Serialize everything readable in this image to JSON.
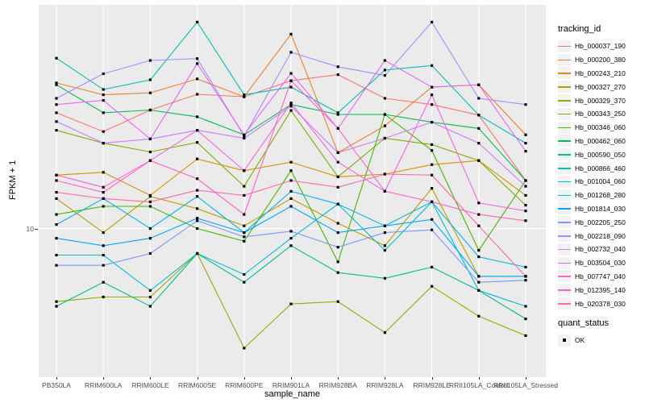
{
  "figure": {
    "panel_bg": "#EBEBEB",
    "grid_color": "#FFFFFF",
    "tick_color": "#333333",
    "axis_text_color": "#4D4D4D",
    "xlabel": "sample_name",
    "ylabel": "FPKM + 1",
    "ytick_label": "10",
    "legend": {
      "tracking_title": "tracking_id",
      "quant_title": "quant_status",
      "quant_ok_label": "OK",
      "point_marker": "black-square"
    }
  },
  "chart_data": {
    "type": "line",
    "title": "",
    "xlabel": "sample_name",
    "ylabel": "FPKM + 1",
    "yscale": "log10",
    "ylim": [
      3.3,
      53
    ],
    "yticks": [
      10
    ],
    "grid": "major-white-on-grey",
    "legend_position": "right",
    "point_marker": "black-square",
    "categories": [
      "PB350LA",
      "RRIM600LA",
      "RRIM600LE",
      "RRIM600SE",
      "RRIM600PE",
      "RRIM901LA",
      "RRIM928BA",
      "RRIM928LA",
      "RRIM928LE",
      "RRII105LA_Control",
      "RRII105LA_Stressed"
    ],
    "series": [
      {
        "name": "Hb_000037_190",
        "color": "#F8766D",
        "values": [
          23.7,
          20.6,
          24.2,
          27.2,
          26.7,
          30.1,
          31.5,
          26.4,
          25.2,
          23.3,
          14.3
        ]
      },
      {
        "name": "Hb_000200_380",
        "color": "#EA8331",
        "values": [
          29.6,
          27.1,
          27.5,
          30.5,
          26.7,
          42.6,
          17.6,
          21.5,
          28.7,
          29.2,
          20.1
        ]
      },
      {
        "name": "Hb_000243_210",
        "color": "#D89000",
        "values": [
          14.9,
          15.2,
          12.8,
          16.8,
          15.4,
          16.4,
          14.7,
          15.0,
          16.1,
          16.6,
          12.8
        ]
      },
      {
        "name": "Hb_000327_270",
        "color": "#C09B00",
        "values": [
          12.5,
          9.7,
          12.7,
          11.6,
          10.2,
          12.5,
          10.4,
          8.8,
          13.5,
          7.0,
          7.0
        ]
      },
      {
        "name": "Hb_000329_370",
        "color": "#A3A500",
        "values": [
          5.8,
          6.0,
          6.0,
          8.3,
          4.1,
          5.7,
          5.8,
          4.6,
          6.5,
          5.2,
          4.5
        ]
      },
      {
        "name": "Hb_000343_250",
        "color": "#7CAE00",
        "values": [
          20.8,
          18.9,
          17.7,
          19.0,
          13.7,
          24.1,
          14.7,
          19.6,
          18.7,
          16.6,
          11.9
        ]
      },
      {
        "name": "Hb_000346_060",
        "color": "#49B500",
        "values": [
          11.1,
          11.8,
          11.8,
          10.0,
          9.1,
          15.4,
          7.8,
          23.4,
          17.9,
          8.5,
          14.3
        ]
      },
      {
        "name": "Hb_000462_060",
        "color": "#00BC51",
        "values": [
          29.2,
          23.7,
          24.2,
          23.0,
          20.1,
          25.2,
          23.4,
          23.4,
          22.1,
          21.1,
          14.3
        ]
      },
      {
        "name": "Hb_000590_050",
        "color": "#00C087",
        "values": [
          5.6,
          6.7,
          5.6,
          8.3,
          6.7,
          8.8,
          7.2,
          6.9,
          7.5,
          6.3,
          5.1
        ]
      },
      {
        "name": "Hb_000866_460",
        "color": "#00C0B2",
        "values": [
          35.6,
          28.2,
          30.3,
          46.6,
          27.1,
          28.7,
          23.7,
          32.6,
          33.7,
          23.3,
          18.9
        ]
      },
      {
        "name": "Hb_001004_060",
        "color": "#00BDD4",
        "values": [
          8.2,
          8.2,
          6.3,
          8.3,
          7.1,
          9.3,
          12.0,
          8.5,
          12.2,
          6.3,
          5.6
        ]
      },
      {
        "name": "Hb_001268_280",
        "color": "#00B5EC",
        "values": [
          10.3,
          12.5,
          10.0,
          12.7,
          9.7,
          13.2,
          12.0,
          10.2,
          12.2,
          8.1,
          7.5
        ]
      },
      {
        "name": "Hb_001814_030",
        "color": "#00A7FF",
        "values": [
          9.3,
          8.8,
          9.3,
          10.8,
          9.7,
          11.8,
          9.7,
          10.2,
          10.7,
          7.0,
          7.0
        ]
      },
      {
        "name": "Hb_002205_250",
        "color": "#7997FF",
        "values": [
          7.6,
          7.6,
          8.3,
          10.6,
          9.4,
          9.8,
          8.7,
          9.7,
          9.9,
          6.7,
          6.8
        ]
      },
      {
        "name": "Hb_002218_090",
        "color": "#AC88FF",
        "values": [
          26.4,
          31.7,
          35.0,
          35.5,
          19.9,
          37.2,
          33.4,
          31.3,
          46.6,
          26.4,
          25.2
        ]
      },
      {
        "name": "Hb_002732_040",
        "color": "#CF78FF",
        "values": [
          22.2,
          18.9,
          19.5,
          20.8,
          19.6,
          24.9,
          17.6,
          19.6,
          22.1,
          18.9,
          13.7
        ]
      },
      {
        "name": "Hb_003504_030",
        "color": "#E866F4",
        "values": [
          25.2,
          26.0,
          19.5,
          34.2,
          20.1,
          31.8,
          21.1,
          35.0,
          28.7,
          29.2,
          17.8
        ]
      },
      {
        "name": "Hb_007747_040",
        "color": "#F863DF",
        "values": [
          14.9,
          13.6,
          16.6,
          20.8,
          15.4,
          25.5,
          16.4,
          13.2,
          27.1,
          12.1,
          11.4
        ]
      },
      {
        "name": "Hb_012395_140",
        "color": "#FF61C7",
        "values": [
          14.3,
          13.1,
          16.6,
          14.5,
          11.1,
          30.1,
          21.1,
          13.2,
          12.2,
          11.1,
          10.6
        ]
      },
      {
        "name": "Hb_020378_030",
        "color": "#FF68A8",
        "values": [
          13.1,
          12.5,
          12.2,
          13.3,
          12.8,
          14.3,
          13.6,
          15.0,
          14.9,
          10.2,
          7.0
        ]
      }
    ]
  }
}
